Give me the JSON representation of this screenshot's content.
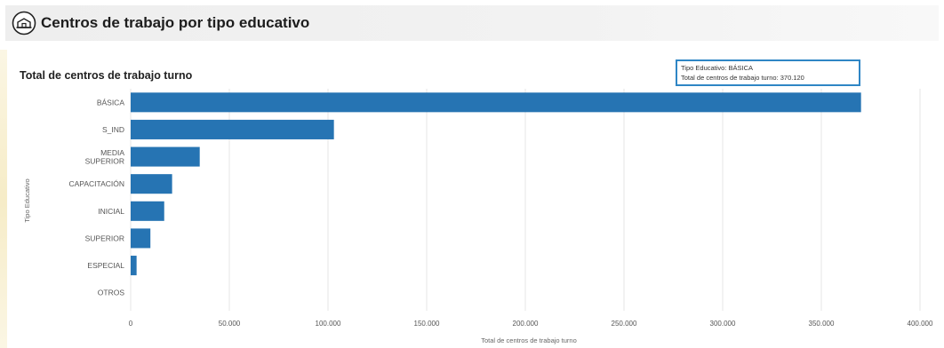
{
  "header": {
    "title": "Centros de trabajo por tipo educativo",
    "icon": "school-building-icon"
  },
  "colors": {
    "bar": "#2674b3",
    "grid": "#e4e4e4",
    "axis_text": "#555555",
    "header_bg": "#efefef",
    "tooltip_border": "#2f86c5"
  },
  "tooltip": {
    "line1": "Tipo Educativo: BÁSICA",
    "line2": "Total de centros de trabajo turno: 370.120"
  },
  "chart_data": {
    "type": "bar",
    "orientation": "horizontal",
    "title": "Total de centros de trabajo turno",
    "xlabel": "Total de centros de trabajo turno",
    "ylabel": "Tipo Educativo",
    "categories": [
      "BÁSICA",
      "S_IND",
      "MEDIA SUPERIOR",
      "CAPACITACIÓN",
      "INICIAL",
      "SUPERIOR",
      "ESPECIAL",
      "OTROS"
    ],
    "category_lines": [
      [
        "BÁSICA"
      ],
      [
        "S_IND"
      ],
      [
        "MEDIA",
        "SUPERIOR"
      ],
      [
        "CAPACITACIÓN"
      ],
      [
        "INICIAL"
      ],
      [
        "SUPERIOR"
      ],
      [
        "ESPECIAL"
      ],
      [
        "OTROS"
      ]
    ],
    "values": [
      370120,
      103000,
      35000,
      21000,
      17000,
      10000,
      3000,
      0
    ],
    "xlim": [
      0,
      400000
    ],
    "xticks": [
      0,
      50000,
      100000,
      150000,
      200000,
      250000,
      300000,
      350000,
      400000
    ],
    "xtick_labels": [
      "0",
      "50.000",
      "100.000",
      "150.000",
      "200.000",
      "250.000",
      "300.000",
      "350.000",
      "400.000"
    ],
    "grid": true
  }
}
